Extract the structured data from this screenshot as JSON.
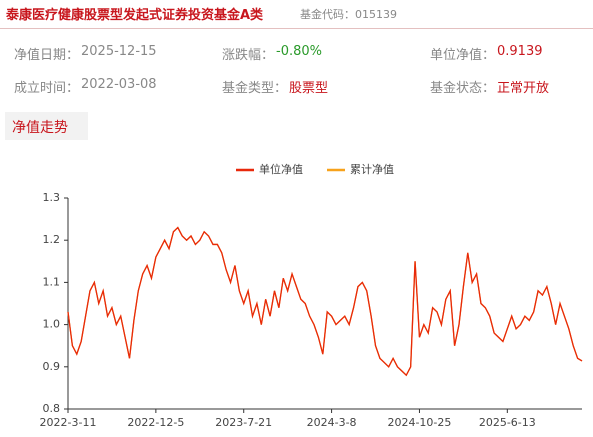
{
  "header": {
    "title": "泰康医疗健康股票型发起式证券投资基金A类",
    "code": "基金代码：015139"
  },
  "info": [
    {
      "label": "净值日期：",
      "value": "2025-12-15"
    },
    {
      "label": "涨跌幅：",
      "value": "-0.80%"
    },
    {
      "label": "单位净值：",
      "value": "0.9139"
    },
    {
      "label": "成立时间：",
      "value": "2022-03-08"
    },
    {
      "label": "基金类型：",
      "value": "股票型"
    },
    {
      "label": "基金状态：",
      "value": "正常开放"
    }
  ],
  "tab": "净值走势",
  "chart_data": {
    "type": "line",
    "categories": [
      "2022-3-11",
      null,
      null,
      null,
      null,
      null,
      null,
      null,
      null,
      null,
      null,
      null,
      null,
      null,
      null,
      null,
      null,
      null,
      null,
      null,
      "2022-12-5",
      null,
      null,
      null,
      null,
      null,
      null,
      null,
      null,
      null,
      null,
      null,
      null,
      null,
      null,
      null,
      null,
      null,
      null,
      null,
      "2023-7-21",
      null,
      null,
      null,
      null,
      null,
      null,
      null,
      null,
      null,
      null,
      null,
      null,
      null,
      null,
      null,
      null,
      null,
      null,
      null,
      "2024-3-8",
      null,
      null,
      null,
      null,
      null,
      null,
      null,
      null,
      null,
      null,
      null,
      null,
      null,
      null,
      null,
      null,
      null,
      null,
      null,
      "2024-10-25",
      null,
      null,
      null,
      null,
      null,
      null,
      null,
      null,
      null,
      null,
      null,
      null,
      null,
      null,
      null,
      null,
      null,
      null,
      null,
      "2025-6-13",
      null,
      null,
      null,
      null,
      null,
      null,
      null,
      null,
      null,
      null,
      null,
      null,
      null,
      null,
      null,
      null,
      null
    ],
    "series": [
      {
        "name": "累计净值",
        "color": "#f7a21b",
        "values": [
          1.03,
          0.95,
          0.93,
          0.96,
          1.02,
          1.08,
          1.1,
          1.05,
          1.08,
          1.02,
          1.04,
          1.0,
          1.02,
          0.97,
          0.92,
          1.01,
          1.08,
          1.12,
          1.14,
          1.11,
          1.16,
          1.18,
          1.2,
          1.18,
          1.22,
          1.23,
          1.21,
          1.2,
          1.21,
          1.19,
          1.2,
          1.22,
          1.21,
          1.19,
          1.19,
          1.17,
          1.13,
          1.1,
          1.14,
          1.08,
          1.05,
          1.08,
          1.02,
          1.05,
          1.0,
          1.06,
          1.02,
          1.08,
          1.04,
          1.11,
          1.08,
          1.12,
          1.09,
          1.06,
          1.05,
          1.02,
          1.0,
          0.97,
          0.93,
          1.03,
          1.02,
          1.0,
          1.01,
          1.02,
          1.0,
          1.04,
          1.09,
          1.1,
          1.08,
          1.02,
          0.95,
          0.92,
          0.91,
          0.9,
          0.92,
          0.9,
          0.89,
          0.88,
          0.9,
          1.15,
          0.97,
          1.0,
          0.98,
          1.04,
          1.03,
          1.0,
          1.06,
          1.08,
          0.95,
          1.0,
          1.09,
          1.17,
          1.1,
          1.12,
          1.05,
          1.04,
          1.02,
          0.98,
          0.97,
          0.96,
          0.99,
          1.02,
          0.99,
          1.0,
          1.02,
          1.01,
          1.03,
          1.08,
          1.07,
          1.09,
          1.05,
          1.0,
          1.05,
          1.02,
          0.99,
          0.95,
          0.92,
          0.9139
        ]
      },
      {
        "name": "单位净值",
        "color": "#e8290b",
        "values": [
          1.03,
          0.95,
          0.93,
          0.96,
          1.02,
          1.08,
          1.1,
          1.05,
          1.08,
          1.02,
          1.04,
          1.0,
          1.02,
          0.97,
          0.92,
          1.01,
          1.08,
          1.12,
          1.14,
          1.11,
          1.16,
          1.18,
          1.2,
          1.18,
          1.22,
          1.23,
          1.21,
          1.2,
          1.21,
          1.19,
          1.2,
          1.22,
          1.21,
          1.19,
          1.19,
          1.17,
          1.13,
          1.1,
          1.14,
          1.08,
          1.05,
          1.08,
          1.02,
          1.05,
          1.0,
          1.06,
          1.02,
          1.08,
          1.04,
          1.11,
          1.08,
          1.12,
          1.09,
          1.06,
          1.05,
          1.02,
          1.0,
          0.97,
          0.93,
          1.03,
          1.02,
          1.0,
          1.01,
          1.02,
          1.0,
          1.04,
          1.09,
          1.1,
          1.08,
          1.02,
          0.95,
          0.92,
          0.91,
          0.9,
          0.92,
          0.9,
          0.89,
          0.88,
          0.9,
          1.15,
          0.97,
          1.0,
          0.98,
          1.04,
          1.03,
          1.0,
          1.06,
          1.08,
          0.95,
          1.0,
          1.09,
          1.17,
          1.1,
          1.12,
          1.05,
          1.04,
          1.02,
          0.98,
          0.97,
          0.96,
          0.99,
          1.02,
          0.99,
          1.0,
          1.02,
          1.01,
          1.03,
          1.08,
          1.07,
          1.09,
          1.05,
          1.0,
          1.05,
          1.02,
          0.99,
          0.95,
          0.92,
          0.9139
        ]
      }
    ],
    "ylim": [
      0.8,
      1.3
    ],
    "yticks": [
      0.8,
      0.9,
      {
        "value": 1.0,
        "label": "1.0"
      },
      1.1,
      1.2,
      1.3
    ],
    "legend": "top"
  }
}
